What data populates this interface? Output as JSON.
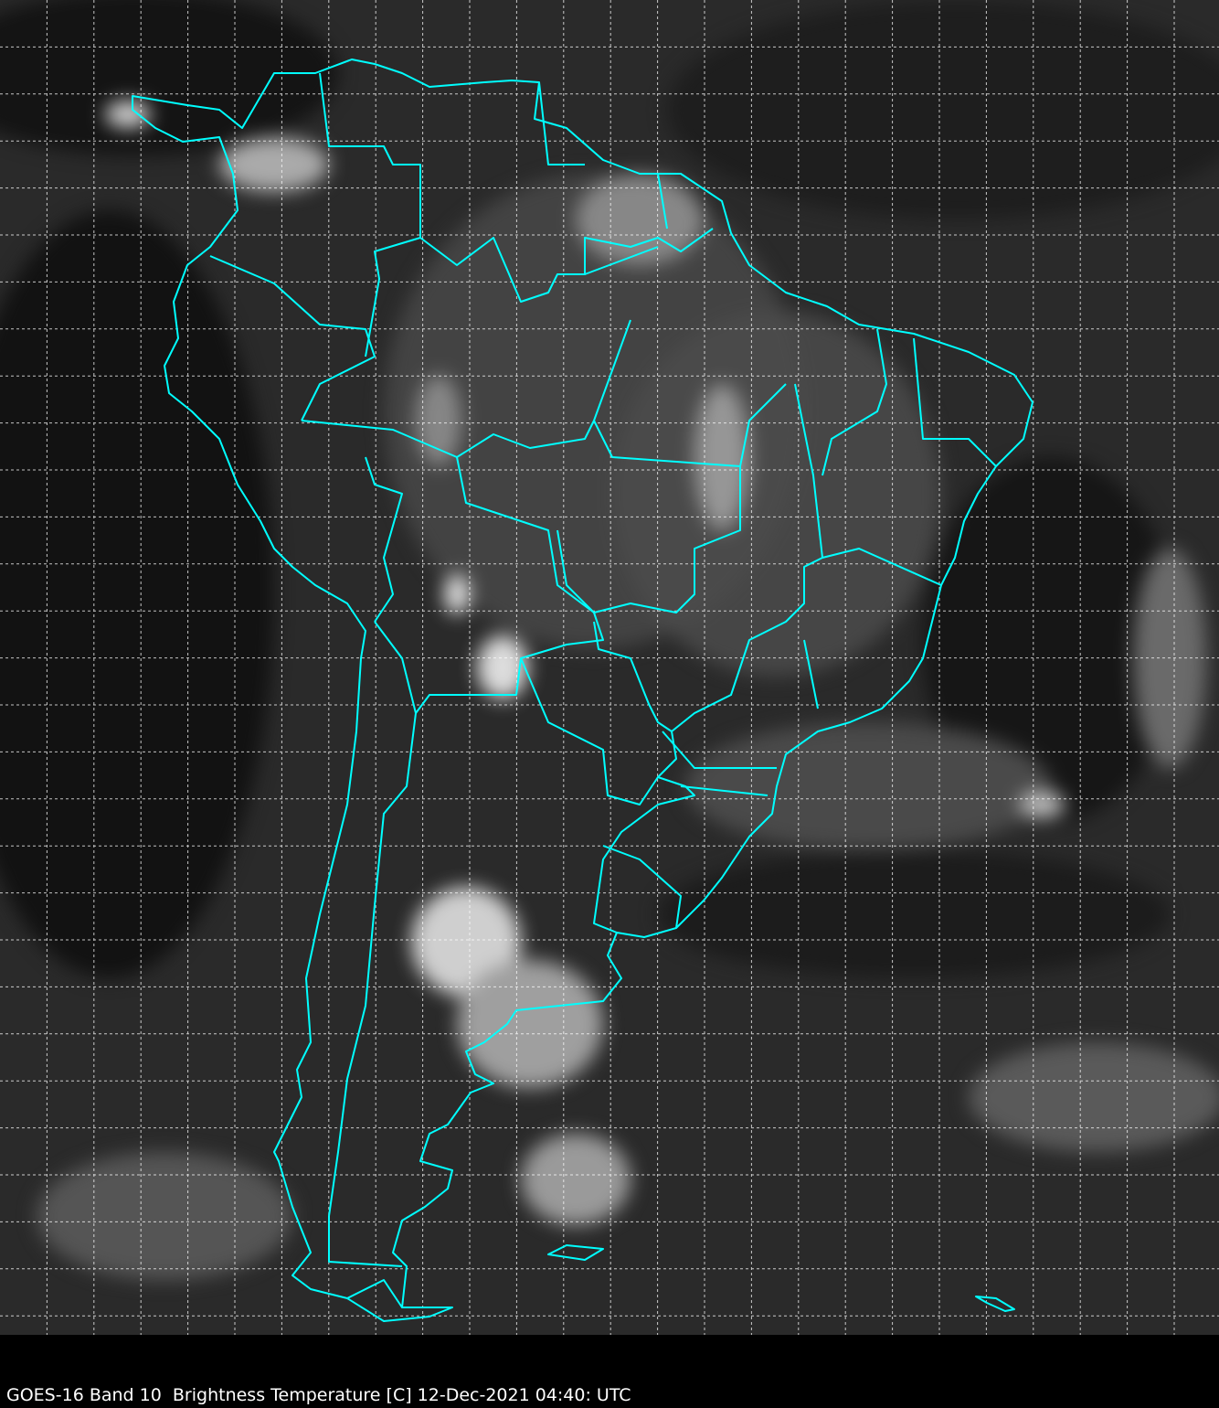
{
  "caption": "GOES-16 Band 10  Brightness Temperature [C] 12-Dec-2021 04:40: UTC",
  "map": {
    "type": "satellite-infrared-image",
    "region": "South America",
    "colormap": "grayscale",
    "border_color": "#00ffff",
    "grid_color": "#ffffff",
    "grid_style": "dashed",
    "background_color": "#000000"
  }
}
